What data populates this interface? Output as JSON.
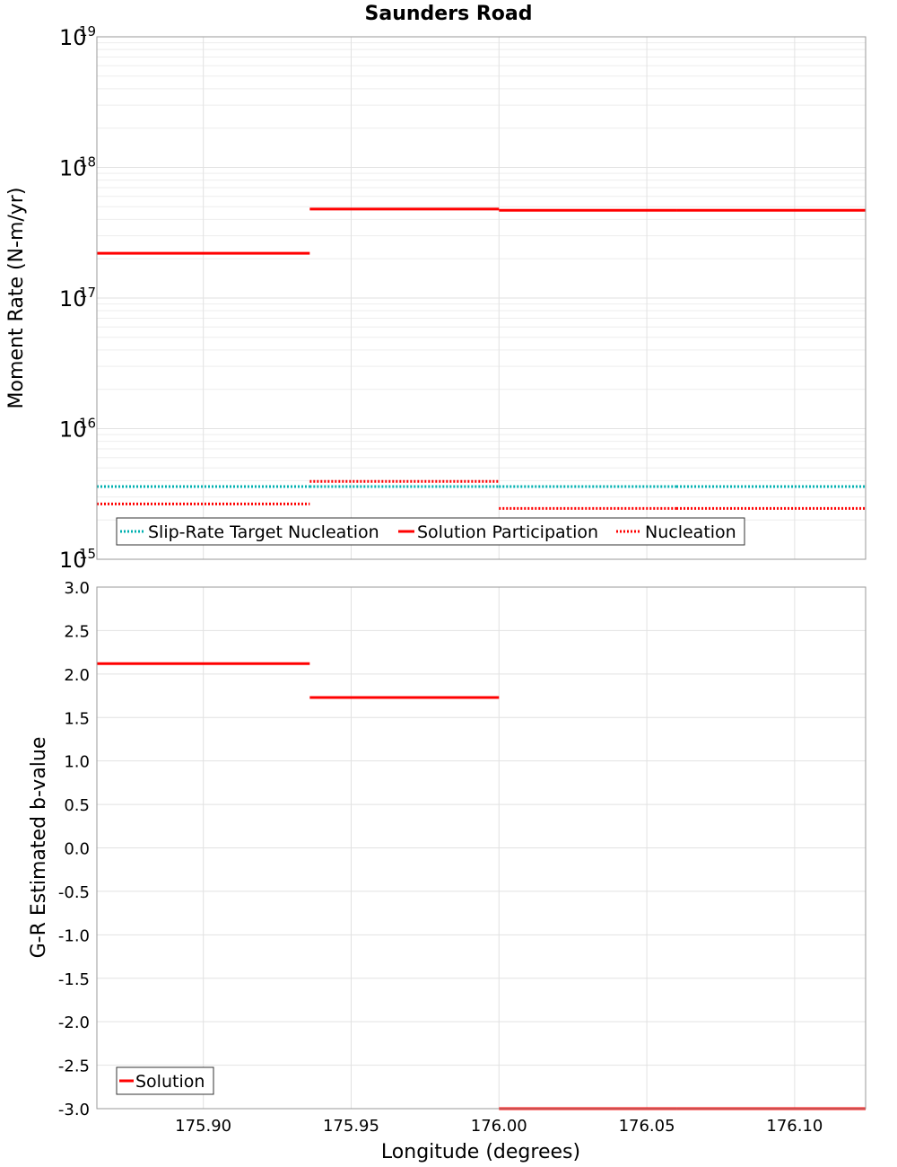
{
  "chart_data": [
    {
      "type": "line",
      "title": "Saunders Road",
      "xlabel": "Longitude (degrees)",
      "ylabel": "Moment Rate (N-m/yr)",
      "yscale": "log",
      "ylim": [
        1000000000000000.0,
        1e+19
      ],
      "xlim": [
        175.864,
        176.124
      ],
      "grid": true,
      "y_ticks": [
        {
          "base": "10",
          "exp": "15",
          "value": 1000000000000000.0
        },
        {
          "base": "10",
          "exp": "16",
          "value": 1e+16
        },
        {
          "base": "10",
          "exp": "17",
          "value": 1e+17
        },
        {
          "base": "10",
          "exp": "18",
          "value": 1e+18
        },
        {
          "base": "10",
          "exp": "19",
          "value": 1e+19
        }
      ],
      "legend_position": "bottom-left",
      "series": [
        {
          "name": "Slip-Rate Target Nucleation",
          "color": "#00b0b0",
          "style": "dotted",
          "segments": [
            {
              "x0": 175.864,
              "x1": 175.936,
              "y": 3600000000000000.0
            },
            {
              "x0": 175.936,
              "x1": 176.0,
              "y": 3600000000000000.0
            },
            {
              "x0": 176.0,
              "x1": 176.06,
              "y": 3600000000000000.0
            },
            {
              "x0": 176.06,
              "x1": 176.124,
              "y": 3600000000000000.0
            }
          ]
        },
        {
          "name": "Solution Participation",
          "color": "#ff0000",
          "style": "solid",
          "segments": [
            {
              "x0": 175.864,
              "x1": 175.936,
              "y": 2.2e+17
            },
            {
              "x0": 175.936,
              "x1": 176.0,
              "y": 4.8e+17
            },
            {
              "x0": 176.0,
              "x1": 176.06,
              "y": 4.7e+17
            },
            {
              "x0": 176.06,
              "x1": 176.124,
              "y": 4.7e+17
            }
          ]
        },
        {
          "name": "Nucleation",
          "color": "#ff0000",
          "style": "dotted",
          "segments": [
            {
              "x0": 175.864,
              "x1": 175.936,
              "y": 2650000000000000.0
            },
            {
              "x0": 175.936,
              "x1": 176.0,
              "y": 3950000000000000.0
            },
            {
              "x0": 176.0,
              "x1": 176.06,
              "y": 2450000000000000.0
            },
            {
              "x0": 176.06,
              "x1": 176.124,
              "y": 2450000000000000.0
            }
          ]
        }
      ]
    },
    {
      "type": "line",
      "xlabel": "Longitude (degrees)",
      "ylabel": "G-R Estimated b-value",
      "ylim": [
        -3.0,
        3.0
      ],
      "xlim": [
        175.864,
        176.124
      ],
      "grid": true,
      "y_ticks": [
        "3.0",
        "2.5",
        "2.0",
        "1.5",
        "1.0",
        "0.5",
        "0.0",
        "-0.5",
        "-1.0",
        "-1.5",
        "-2.0",
        "-2.5",
        "-3.0"
      ],
      "x_ticks": [
        "175.90",
        "175.95",
        "176.00",
        "176.05",
        "176.10"
      ],
      "legend_position": "bottom-left",
      "series": [
        {
          "name": "Solution",
          "color": "#ff0000",
          "style": "solid",
          "segments": [
            {
              "x0": 175.864,
              "x1": 175.936,
              "y": 2.12
            },
            {
              "x0": 175.936,
              "x1": 176.0,
              "y": 1.73
            },
            {
              "x0": 176.0,
              "x1": 176.06,
              "y": -3.0
            },
            {
              "x0": 176.06,
              "x1": 176.124,
              "y": -3.0
            }
          ]
        }
      ]
    }
  ]
}
